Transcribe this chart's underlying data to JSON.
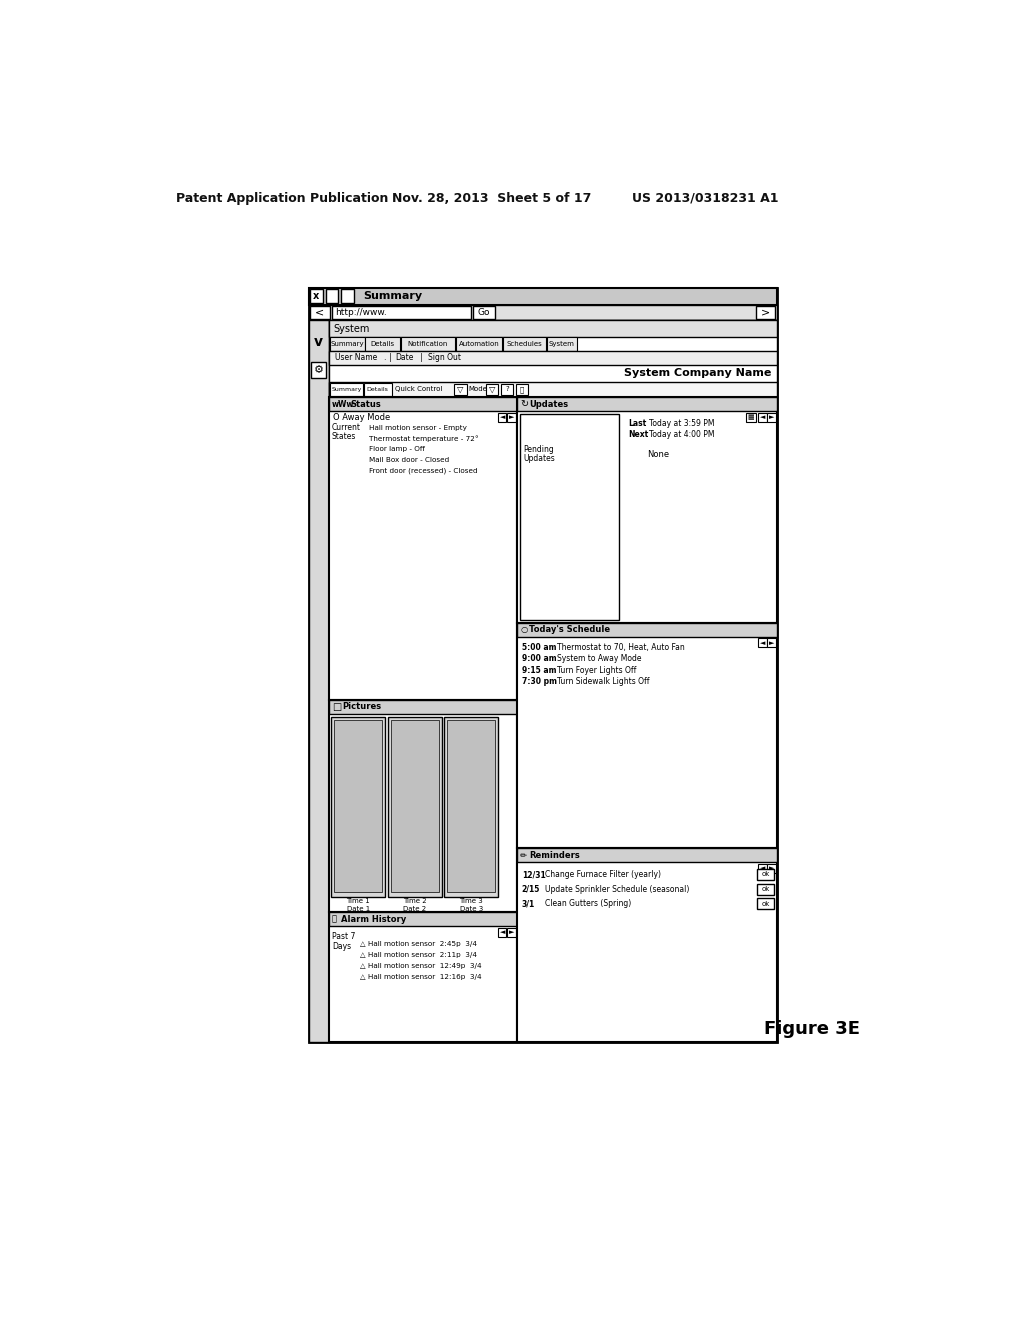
{
  "bg_color": "#ffffff",
  "header_left": "Patent Application Publication",
  "header_mid": "Nov. 28, 2013  Sheet 5 of 17",
  "header_right": "US 2013/0318231 A1",
  "figure_label": "Figure 3E",
  "browser_title": "Summary",
  "address_text": "http://www.",
  "system_label": "System",
  "company_name": "System Company Name",
  "nav_tabs": [
    "Summary",
    "Details",
    "Notification",
    "Automation",
    "Schedules",
    "System"
  ],
  "user_bar": "User Name .| Date  |  Sign Out",
  "left_panel_title": "wWw Status",
  "left_panel_mode": "O Away Mode",
  "left_panel_sub": "Current\nStates",
  "left_panel_items": [
    "Hall motion sensor - Empty",
    "Thermostat temperature - 72°",
    "Floor lamp - Off",
    "Mail Box door - Closed",
    "Front door (recessed) - Closed"
  ],
  "pictures_title": "Pictures",
  "pictures": [
    "Time 1\nDate 1",
    "Time 2\nDate 2",
    "Time 3\nDate 3"
  ],
  "alarm_title": "Alarm History",
  "alarm_sub": "Past 7\nDays",
  "alarm_items": [
    "△ Hall motion sensor  2:45p  3/4",
    "△ Hall motion sensor  2:11p  3/4",
    "△ Hall motion sensor  12:49p  3/4",
    "△ Hall motion sensor  12:16p  3/4"
  ],
  "updates_title": "Updates",
  "last_value": "Today at 3:59 PM",
  "next_value": "Today at 4:00 PM",
  "pending_value": "None",
  "schedule_title": "Today's Schedule",
  "schedule_items": [
    [
      "5:00 am",
      "Thermostat to 70, Heat, Auto Fan"
    ],
    [
      "9:00 am",
      "System to Away Mode"
    ],
    [
      "9:15 am",
      "Turn Foyer Lights Off"
    ],
    [
      "7:30 pm",
      "Turn Sidewalk Lights Off"
    ]
  ],
  "reminders_title": "Reminders",
  "reminder_items": [
    [
      "12/31",
      "Change Furnace Filter (yearly)"
    ],
    [
      "2/15",
      "Update Sprinkler Schedule (seasonal)"
    ],
    [
      "3/1",
      "Clean Gutters (Spring)"
    ]
  ]
}
